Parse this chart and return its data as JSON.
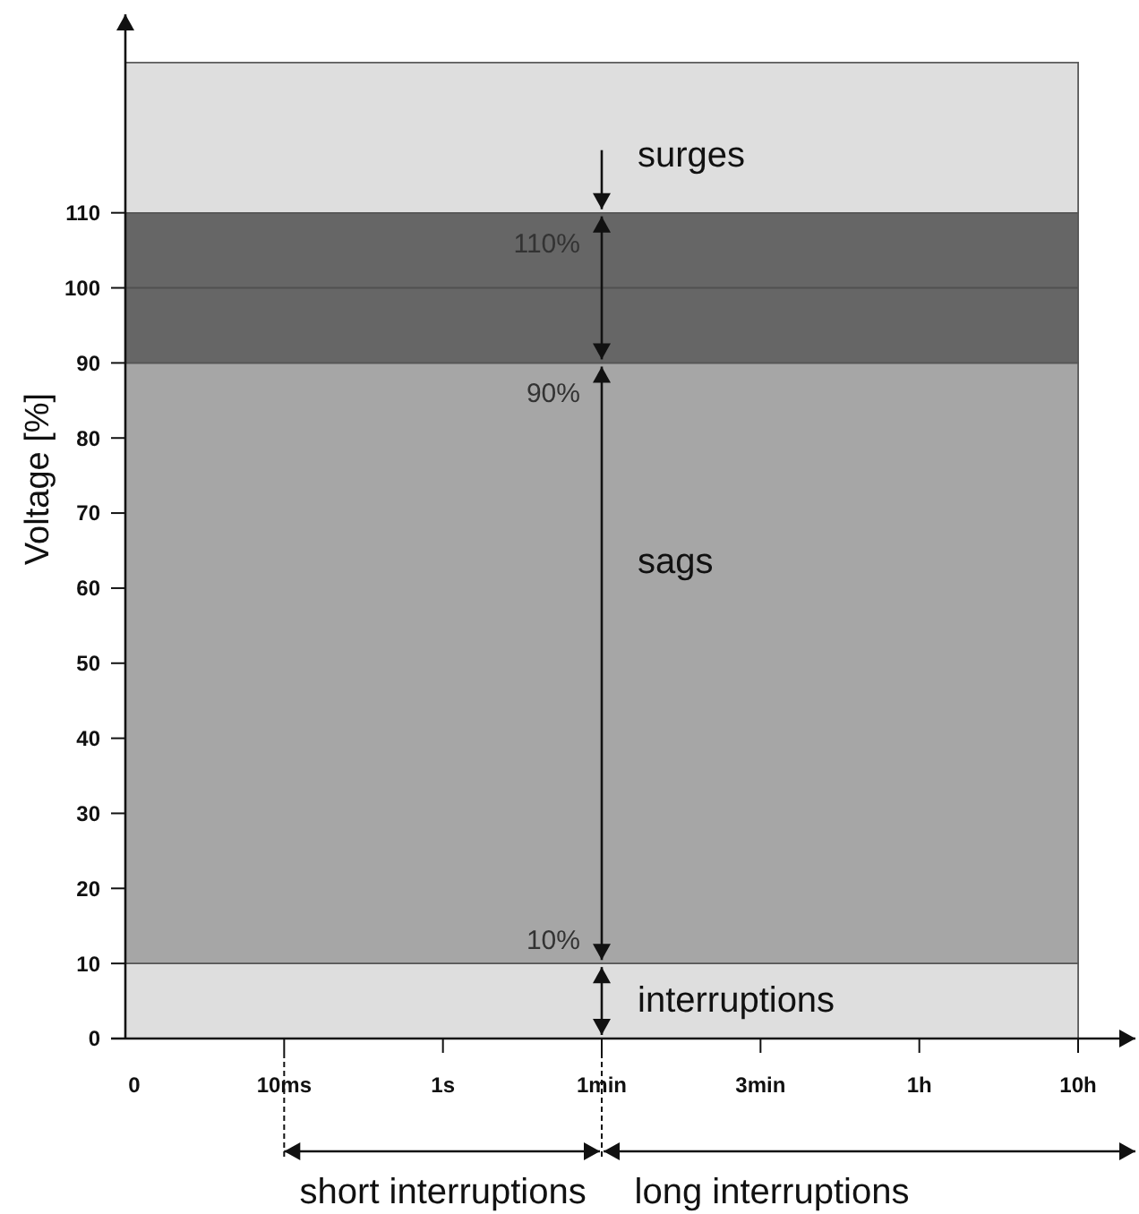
{
  "chart_data": {
    "type": "area",
    "stacked": true,
    "ylabel": "Voltage [%]",
    "categories": [
      "0",
      "10ms",
      "1s",
      "1min",
      "3min",
      "1h",
      "10h"
    ],
    "ylim": [
      0,
      130
    ],
    "yticks": [
      0,
      10,
      20,
      30,
      40,
      50,
      60,
      70,
      80,
      90,
      100,
      110
    ],
    "series": [
      {
        "name": "interruptions",
        "color": "#dedede",
        "values": [
          10,
          10,
          10,
          10,
          10,
          10,
          10
        ]
      },
      {
        "name": "sags",
        "color": "#a6a6a6",
        "values": [
          80,
          80,
          80,
          80,
          80,
          80,
          80
        ]
      },
      {
        "color": "#666666",
        "values": [
          20,
          20,
          20,
          20,
          20,
          20,
          20
        ]
      },
      {
        "name": "surges",
        "color": "#dedede",
        "values": [
          20,
          20,
          20,
          20,
          20,
          20,
          20
        ]
      }
    ],
    "ref_lines": [
      {
        "axis": "y",
        "value": 100,
        "color": "#505050"
      }
    ],
    "annotations": [
      {
        "text": "110%",
        "x": "1min",
        "y": 110
      },
      {
        "text": "90%",
        "x": "1min",
        "y": 90
      },
      {
        "text": "10%",
        "x": "1min",
        "y": 10
      },
      "short interruptions",
      "long interruptions"
    ]
  }
}
